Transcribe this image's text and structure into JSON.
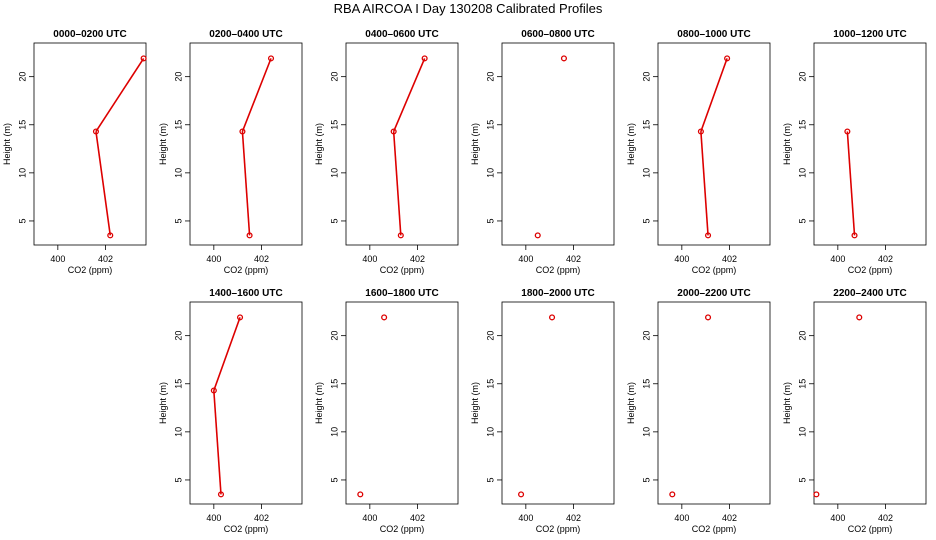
{
  "title": "RBA AIRCOA I  Day 130208  Calibrated Profiles",
  "colors": {
    "series": "#dd0000",
    "axis": "#000000"
  },
  "chart_data": [
    {
      "type": "line",
      "title": "0000–0200 UTC",
      "xlabel": "CO2 (ppm)",
      "ylabel": "Height (m)",
      "xlim": [
        399,
        403.7
      ],
      "ylim": [
        2.5,
        23.5
      ],
      "xticks": [
        400,
        402
      ],
      "yticks": [
        5,
        10,
        15,
        20
      ],
      "x": [
        402.2,
        401.6,
        403.6
      ],
      "y": [
        3.5,
        14.3,
        21.9
      ],
      "connected": [
        [
          0,
          1
        ],
        [
          1,
          2
        ]
      ]
    },
    {
      "type": "line",
      "title": "0200–0400 UTC",
      "xlabel": "CO2 (ppm)",
      "ylabel": "Height (m)",
      "xlim": [
        399,
        403.7
      ],
      "ylim": [
        2.5,
        23.5
      ],
      "xticks": [
        400,
        402
      ],
      "yticks": [
        5,
        10,
        15,
        20
      ],
      "x": [
        401.5,
        401.2,
        402.4
      ],
      "y": [
        3.5,
        14.3,
        21.9
      ],
      "connected": [
        [
          0,
          1
        ],
        [
          1,
          2
        ]
      ]
    },
    {
      "type": "line",
      "title": "0400–0600 UTC",
      "xlabel": "CO2 (ppm)",
      "ylabel": "Height (m)",
      "xlim": [
        399,
        403.7
      ],
      "ylim": [
        2.5,
        23.5
      ],
      "xticks": [
        400,
        402
      ],
      "yticks": [
        5,
        10,
        15,
        20
      ],
      "x": [
        401.3,
        401.0,
        402.3
      ],
      "y": [
        3.5,
        14.3,
        21.9
      ],
      "connected": [
        [
          0,
          1
        ],
        [
          1,
          2
        ]
      ]
    },
    {
      "type": "scatter",
      "title": "0600–0800 UTC",
      "xlabel": "CO2 (ppm)",
      "ylabel": "Height (m)",
      "xlim": [
        399,
        403.7
      ],
      "ylim": [
        2.5,
        23.5
      ],
      "xticks": [
        400,
        402
      ],
      "yticks": [
        5,
        10,
        15,
        20
      ],
      "x": [
        400.5,
        401.6
      ],
      "y": [
        3.5,
        21.9
      ],
      "connected": []
    },
    {
      "type": "line",
      "title": "0800–1000 UTC",
      "xlabel": "CO2 (ppm)",
      "ylabel": "Height (m)",
      "xlim": [
        399,
        403.7
      ],
      "ylim": [
        2.5,
        23.5
      ],
      "xticks": [
        400,
        402
      ],
      "yticks": [
        5,
        10,
        15,
        20
      ],
      "x": [
        401.1,
        400.8,
        401.9
      ],
      "y": [
        3.5,
        14.3,
        21.9
      ],
      "connected": [
        [
          0,
          1
        ],
        [
          1,
          2
        ]
      ]
    },
    {
      "type": "line",
      "title": "1000–1200 UTC",
      "xlabel": "CO2 (ppm)",
      "ylabel": "Height (m)",
      "xlim": [
        399,
        403.7
      ],
      "ylim": [
        2.5,
        23.5
      ],
      "xticks": [
        400,
        402
      ],
      "yticks": [
        5,
        10,
        15,
        20
      ],
      "x": [
        400.7,
        400.4
      ],
      "y": [
        3.5,
        14.3
      ],
      "connected": [
        [
          0,
          1
        ]
      ]
    },
    {
      "type": "line",
      "title": "1400–1600 UTC",
      "xlabel": "CO2 (ppm)",
      "ylabel": "Height (m)",
      "xlim": [
        399,
        403.7
      ],
      "ylim": [
        2.5,
        23.5
      ],
      "xticks": [
        400,
        402
      ],
      "yticks": [
        5,
        10,
        15,
        20
      ],
      "x": [
        400.3,
        400.0,
        401.1
      ],
      "y": [
        3.5,
        14.3,
        21.9
      ],
      "connected": [
        [
          0,
          1
        ],
        [
          1,
          2
        ]
      ]
    },
    {
      "type": "scatter",
      "title": "1600–1800 UTC",
      "xlabel": "CO2 (ppm)",
      "ylabel": "Height (m)",
      "xlim": [
        399,
        403.7
      ],
      "ylim": [
        2.5,
        23.5
      ],
      "xticks": [
        400,
        402
      ],
      "yticks": [
        5,
        10,
        15,
        20
      ],
      "x": [
        399.6,
        400.6
      ],
      "y": [
        3.5,
        21.9
      ],
      "connected": []
    },
    {
      "type": "scatter",
      "title": "1800–2000 UTC",
      "xlabel": "CO2 (ppm)",
      "ylabel": "Height (m)",
      "xlim": [
        399,
        403.7
      ],
      "ylim": [
        2.5,
        23.5
      ],
      "xticks": [
        400,
        402
      ],
      "yticks": [
        5,
        10,
        15,
        20
      ],
      "x": [
        399.8,
        401.1
      ],
      "y": [
        3.5,
        21.9
      ],
      "connected": []
    },
    {
      "type": "scatter",
      "title": "2000–2200 UTC",
      "xlabel": "CO2 (ppm)",
      "ylabel": "Height (m)",
      "xlim": [
        399,
        403.7
      ],
      "ylim": [
        2.5,
        23.5
      ],
      "xticks": [
        400,
        402
      ],
      "yticks": [
        5,
        10,
        15,
        20
      ],
      "x": [
        399.6,
        401.1
      ],
      "y": [
        3.5,
        21.9
      ],
      "connected": []
    },
    {
      "type": "scatter",
      "title": "2200–2400 UTC",
      "xlabel": "CO2 (ppm)",
      "ylabel": "Height (m)",
      "xlim": [
        399,
        403.7
      ],
      "ylim": [
        2.5,
        23.5
      ],
      "xticks": [
        400,
        402
      ],
      "yticks": [
        5,
        10,
        15,
        20
      ],
      "x": [
        399.1,
        400.9
      ],
      "y": [
        3.5,
        21.9
      ],
      "connected": []
    }
  ]
}
